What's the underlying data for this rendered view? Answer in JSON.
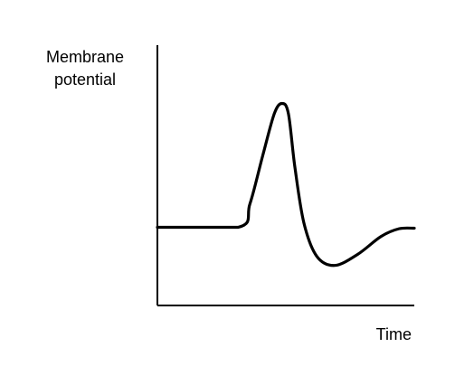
{
  "chart_data": {
    "type": "line",
    "title": "",
    "ylabel_lines": [
      "Membrane",
      "potential"
    ],
    "xlabel": "Time",
    "x_ticks": [],
    "y_ticks": [],
    "grid": false,
    "legend": "none",
    "series": [
      {
        "line_color": "#000000",
        "points": [
          {
            "t": 0.0,
            "v": 0.255
          },
          {
            "t": 0.315,
            "v": 0.255
          },
          {
            "t": 0.36,
            "v": 0.38
          },
          {
            "t": 0.41,
            "v": 0.64
          },
          {
            "t": 0.455,
            "v": 0.865
          },
          {
            "t": 0.485,
            "v": 0.92
          },
          {
            "t": 0.51,
            "v": 0.865
          },
          {
            "t": 0.535,
            "v": 0.58
          },
          {
            "t": 0.57,
            "v": 0.28
          },
          {
            "t": 0.62,
            "v": 0.1
          },
          {
            "t": 0.69,
            "v": 0.05
          },
          {
            "t": 0.78,
            "v": 0.11
          },
          {
            "t": 0.87,
            "v": 0.205
          },
          {
            "t": 0.94,
            "v": 0.247
          },
          {
            "t": 1.0,
            "v": 0.25
          }
        ]
      }
    ]
  }
}
